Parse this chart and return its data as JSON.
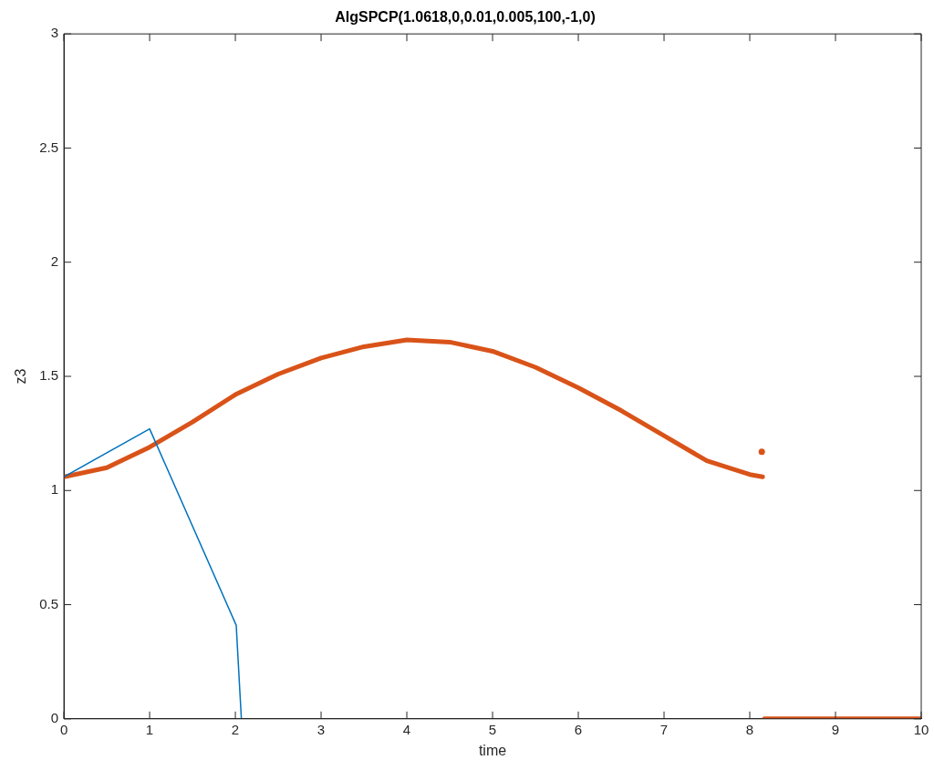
{
  "chart_data": {
    "type": "line",
    "title": "AlgSPCP(1.0618,0,0.01,0.005,100,-1,0)",
    "xlabel": "time",
    "ylabel": "z3",
    "xlim": [
      0,
      10
    ],
    "ylim": [
      0,
      3
    ],
    "xticks": [
      0,
      1,
      2,
      3,
      4,
      5,
      6,
      7,
      8,
      9,
      10
    ],
    "yticks": [
      0,
      0.5,
      1,
      1.5,
      2,
      2.5,
      3
    ],
    "grid": false,
    "legend": false,
    "series": [
      {
        "color": "#0072bd",
        "x": [
          0,
          1,
          2.01,
          2.07
        ],
        "values": [
          1.06,
          1.27,
          0.41,
          0
        ]
      },
      {
        "color": "#d95319",
        "x": [
          0,
          0.5,
          1,
          1.5,
          2,
          2.5,
          3,
          3.5,
          4,
          4.5,
          5,
          5.5,
          6,
          6.5,
          7,
          7.5,
          8,
          8.15,
          8.16,
          8.17,
          10
        ],
        "values": [
          1.06,
          1.1,
          1.19,
          1.3,
          1.42,
          1.51,
          1.58,
          1.63,
          1.66,
          1.65,
          1.61,
          1.54,
          1.45,
          1.35,
          1.24,
          1.13,
          1.07,
          1.06,
          null,
          0,
          0
        ]
      },
      {
        "type": "scatter",
        "marker": "circle",
        "color": "#d95319",
        "x": [
          8.14
        ],
        "values": [
          1.17
        ]
      }
    ]
  }
}
